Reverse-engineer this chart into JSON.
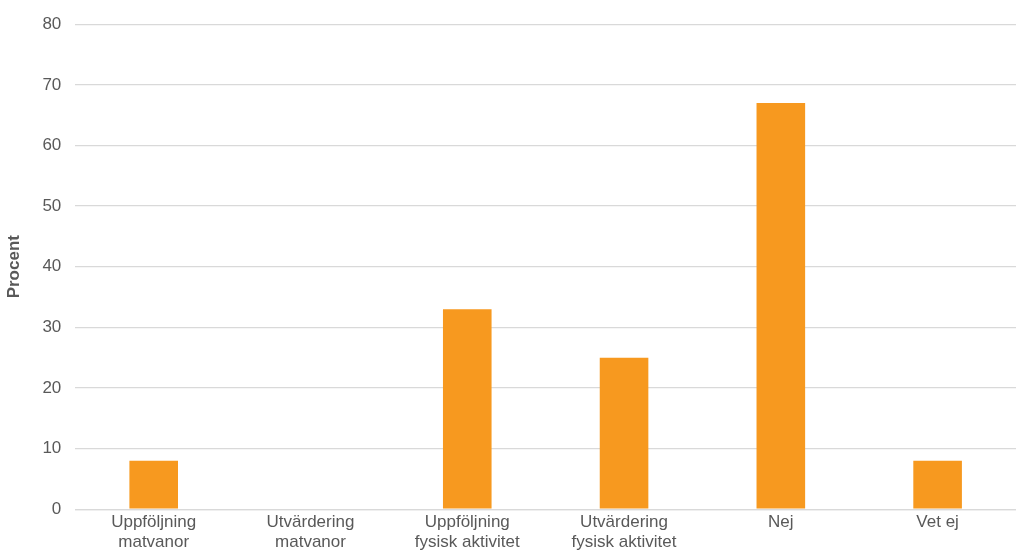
{
  "chart_data": {
    "type": "bar",
    "ylabel": "Procent",
    "categories": [
      "Uppföljning matvanor",
      "Utvärdering matvanor",
      "Uppföljning fysisk aktivitet",
      "Utvärdering fysisk aktivitet",
      "Nej",
      "Vet ej"
    ],
    "values": [
      8,
      0,
      33,
      25,
      67,
      8
    ],
    "color": "#f7991f",
    "ylim": [
      0,
      80
    ],
    "yticks": [
      0,
      10,
      20,
      30,
      40,
      50,
      60,
      70,
      80
    ],
    "grid": "y",
    "legend": false
  }
}
